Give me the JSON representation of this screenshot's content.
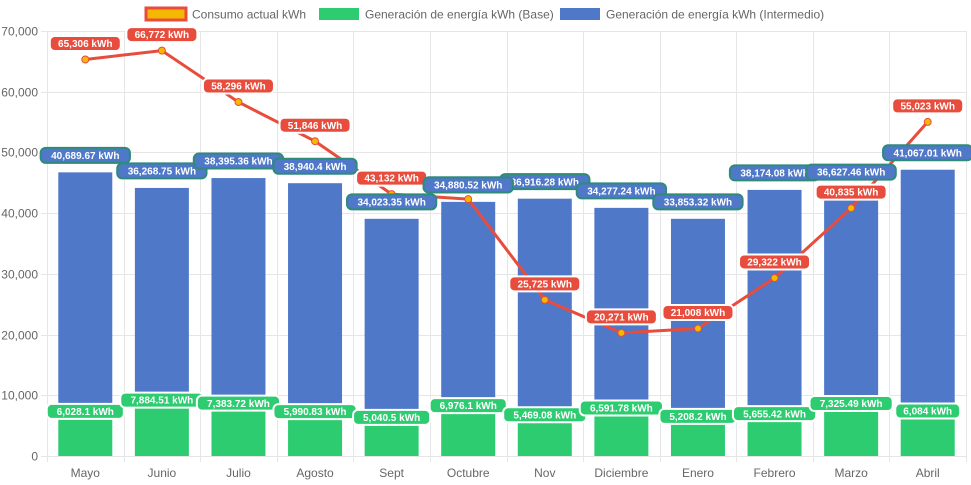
{
  "chart_data": {
    "type": "bar",
    "stacked": true,
    "categories": [
      "Mayo",
      "Junio",
      "Julio",
      "Agosto",
      "Sept",
      "Octubre",
      "Nov",
      "Diciembre",
      "Enero",
      "Febrero",
      "Marzo",
      "Abril"
    ],
    "ylim": [
      0,
      70000
    ],
    "yticks": [
      0,
      10000,
      20000,
      30000,
      40000,
      50000,
      60000,
      70000
    ],
    "ytick_labels": [
      "0",
      "10,000",
      "20,000",
      "30,000",
      "40,000",
      "50,000",
      "60,000",
      "70,000"
    ],
    "legend_position": "top-center",
    "grid": true,
    "series": [
      {
        "name": "Consumo actual kWh",
        "type": "line",
        "color": "#e74c3c",
        "point_color": "#f5b800",
        "values": [
          65306,
          66772,
          58296,
          51846,
          43132,
          42300,
          25725,
          20271,
          21008,
          29322,
          40835,
          55023
        ],
        "labels": [
          "65,306 kWh",
          "66,772 kWh",
          "58,296 kWh",
          "51,846 kWh",
          "43,132 kWh",
          "",
          "25,725 kWh",
          "20,271 kWh",
          "21,008 kWh",
          "29,322 kWh",
          "40,835 kWh",
          "55,023 kWh"
        ]
      },
      {
        "name": "Generación de energía kWh (Base)",
        "type": "bar",
        "color": "#2ecc71",
        "values": [
          6028.1,
          7884.51,
          7383.72,
          5990.83,
          5040.5,
          6976.1,
          5469.08,
          6591.78,
          5208.2,
          5655.42,
          7325.49,
          6084
        ],
        "labels": [
          "6,028.1 kWh",
          "7,884.51 kWh",
          "7,383.72 kWh",
          "5,990.83 kWh",
          "5,040.5 kWh",
          "6,976.1 kWh",
          "5,469.08 kWh",
          "6,591.78 kWh",
          "5,208.2 kWh",
          "5,655.42 kWh",
          "7,325.49 kWh",
          "6,084 kWh"
        ]
      },
      {
        "name": "Generación de energía kWh (Intermedio)",
        "type": "bar",
        "color": "#4f78c9",
        "values": [
          40689.67,
          36268.75,
          38395.36,
          38940.4,
          34023.35,
          34880.52,
          36916.28,
          34277.24,
          33853.32,
          38174.08,
          36627.46,
          41067.01
        ],
        "labels": [
          "40,689.67 kWh",
          "36,268.75 kWh",
          "38,395.36 kWh",
          "38,940.4 kWh",
          "34,023.35 kWh",
          "34,880.52 kWh",
          "36,916.28 kWh",
          "34,277.24 kWh",
          "33,853.32 kWh",
          "38,174.08 kWh",
          "36,627.46 kWh",
          "41,067.01 kWh"
        ]
      }
    ]
  }
}
